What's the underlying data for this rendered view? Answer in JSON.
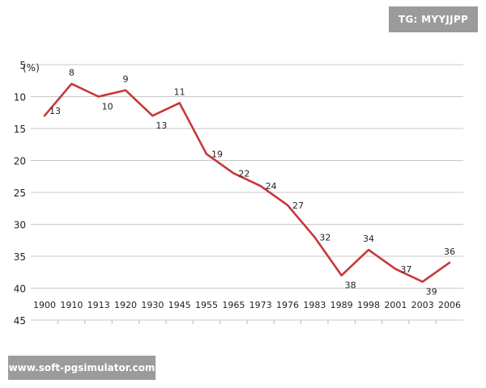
{
  "watermark_top": "TG: MYYJJPP",
  "watermark_bottom": "www.soft-pgsimulator.com",
  "chart_data": {
    "type": "line",
    "title": "",
    "xlabel": "",
    "ylabel": "(%)",
    "y_reversed": true,
    "ylim": [
      5,
      45
    ],
    "yticks": [
      5,
      10,
      15,
      20,
      25,
      30,
      35,
      40,
      45
    ],
    "grid": "horizontal",
    "line_color": "#c8383a",
    "categories": [
      "1900",
      "1910",
      "1913",
      "1920",
      "1930",
      "1945",
      "1955",
      "1965",
      "1973",
      "1976",
      "1983",
      "1989",
      "1998",
      "2001",
      "2003",
      "2006"
    ],
    "values": [
      13,
      8,
      10,
      9,
      13,
      11,
      19,
      22,
      24,
      27,
      32,
      38,
      34,
      37,
      39,
      36
    ]
  }
}
